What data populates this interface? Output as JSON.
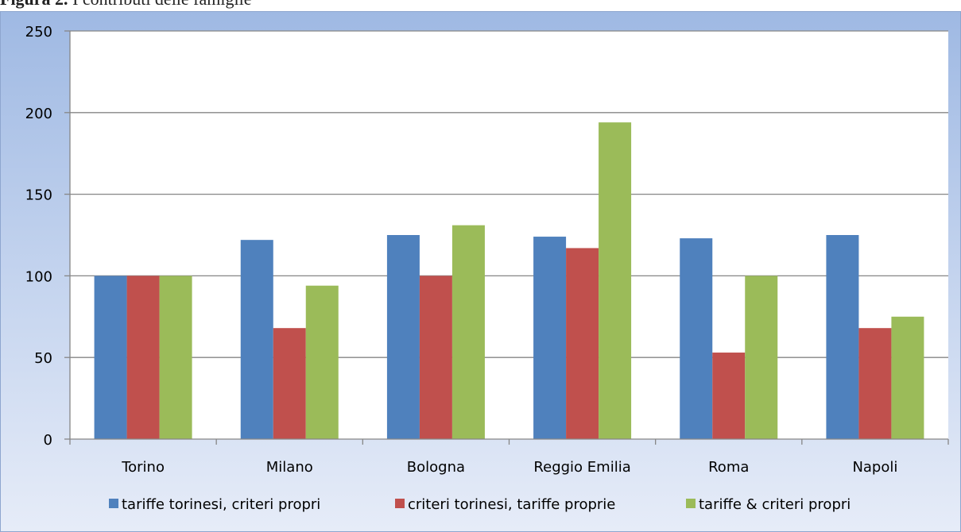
{
  "caption": {
    "label": "Figura 2.",
    "text": "I contributi delle famiglie"
  },
  "chart_data": {
    "type": "bar",
    "categories": [
      "Torino",
      "Milano",
      "Bologna",
      "Reggio Emilia",
      "Roma",
      "Napoli"
    ],
    "series": [
      {
        "name": "tariffe torinesi, criteri propri",
        "color": "#4f81bd",
        "values": [
          100,
          122,
          125,
          124,
          123,
          125
        ]
      },
      {
        "name": "criteri torinesi, tariffe proprie",
        "color": "#c0504d",
        "values": [
          100,
          68,
          100,
          117,
          53,
          68
        ]
      },
      {
        "name": "tariffe & criteri propri",
        "color": "#9bbb59",
        "values": [
          100,
          94,
          131,
          194,
          100,
          75
        ]
      }
    ],
    "yticks": [
      0,
      50,
      100,
      150,
      200,
      250
    ],
    "ylim": [
      0,
      250
    ],
    "grid": true,
    "legend_position": "bottom"
  }
}
